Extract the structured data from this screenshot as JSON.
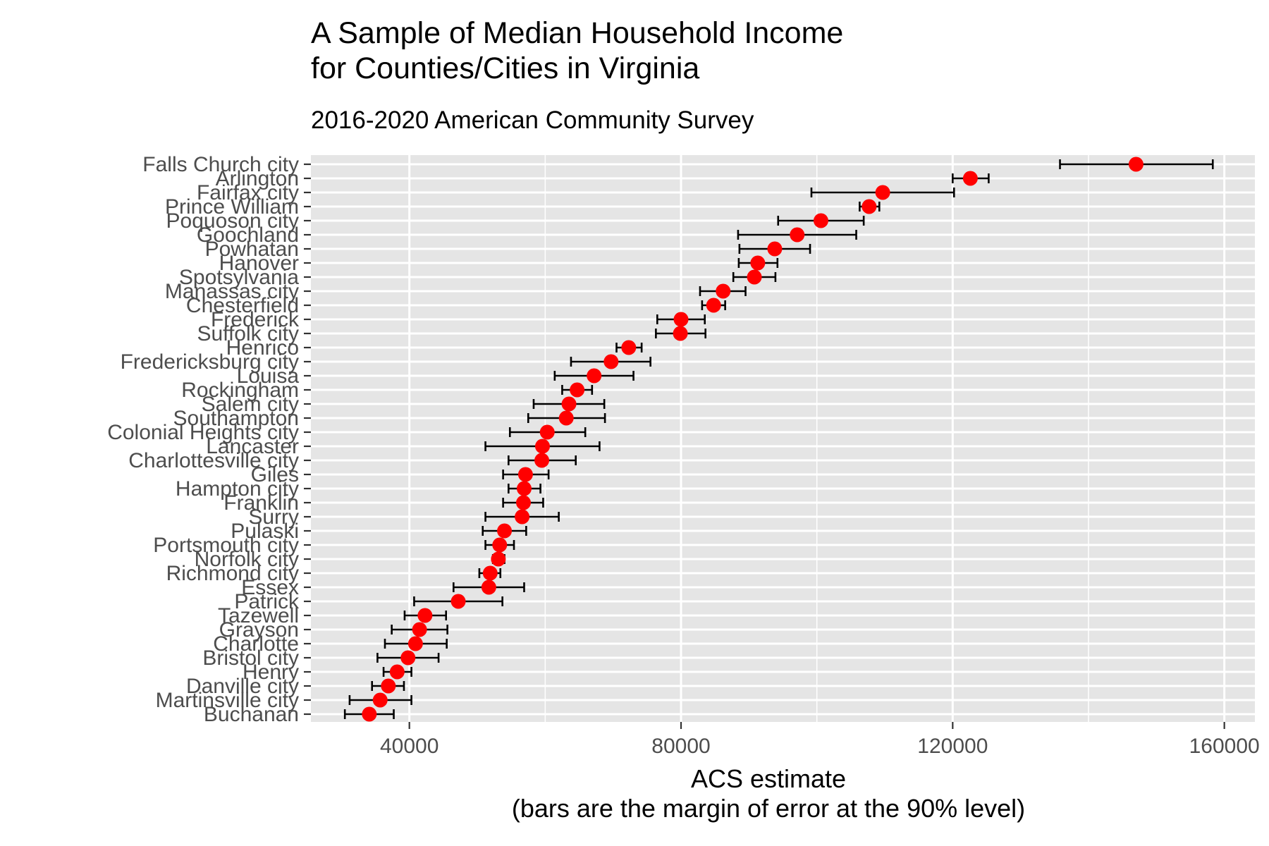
{
  "chart_data": {
    "type": "scatter",
    "title": [
      "A Sample of Median Household Income",
      "for Counties/Cities in Virginia"
    ],
    "subtitle": "2016-2020 American Community Survey",
    "xlabel": [
      "ACS estimate",
      "(bars are the margin of error at the 90% level)"
    ],
    "ylabel": "",
    "xlim": [
      25500,
      164500
    ],
    "xticks": [
      40000,
      80000,
      120000,
      160000
    ],
    "xtick_labels": [
      "40000",
      "80000",
      "120000",
      "160000"
    ],
    "grid": true,
    "point_color": "#ff0000",
    "errorbar_color": "#000000",
    "panel_color": "#e5e5e5",
    "series": [
      {
        "points": [
          {
            "name": "Falls Church city",
            "value": 147000,
            "low": 135800,
            "high": 158300
          },
          {
            "name": "Arlington",
            "value": 122600,
            "low": 120000,
            "high": 125300
          },
          {
            "name": "Fairfax city",
            "value": 109700,
            "low": 99200,
            "high": 120200
          },
          {
            "name": "Prince William",
            "value": 107700,
            "low": 106300,
            "high": 109200
          },
          {
            "name": "Poquoson city",
            "value": 100600,
            "low": 94300,
            "high": 106900
          },
          {
            "name": "Goochland",
            "value": 97100,
            "low": 88400,
            "high": 105800
          },
          {
            "name": "Powhatan",
            "value": 93800,
            "low": 88600,
            "high": 99000
          },
          {
            "name": "Hanover",
            "value": 91300,
            "low": 88500,
            "high": 94200
          },
          {
            "name": "Spotsylvania",
            "value": 90800,
            "low": 87700,
            "high": 93900
          },
          {
            "name": "Manassas city",
            "value": 86200,
            "low": 82800,
            "high": 89500
          },
          {
            "name": "Chesterfield",
            "value": 84800,
            "low": 83100,
            "high": 86500
          },
          {
            "name": "Frederick",
            "value": 80000,
            "low": 76500,
            "high": 83500
          },
          {
            "name": "Suffolk city",
            "value": 79900,
            "low": 76300,
            "high": 83600
          },
          {
            "name": "Henrico",
            "value": 72300,
            "low": 70500,
            "high": 74200
          },
          {
            "name": "Fredericksburg city",
            "value": 69700,
            "low": 63800,
            "high": 75500
          },
          {
            "name": "Louisa",
            "value": 67200,
            "low": 61400,
            "high": 73000
          },
          {
            "name": "Rockingham",
            "value": 64700,
            "low": 62500,
            "high": 66900
          },
          {
            "name": "Salem city",
            "value": 63500,
            "low": 58300,
            "high": 68700
          },
          {
            "name": "Southampton",
            "value": 63100,
            "low": 57500,
            "high": 68800
          },
          {
            "name": "Colonial Heights city",
            "value": 60300,
            "low": 54800,
            "high": 65900
          },
          {
            "name": "Lancaster",
            "value": 59600,
            "low": 51200,
            "high": 68000
          },
          {
            "name": "Charlottesville city",
            "value": 59500,
            "low": 54600,
            "high": 64500
          },
          {
            "name": "Giles",
            "value": 57100,
            "low": 53800,
            "high": 60500
          },
          {
            "name": "Hampton city",
            "value": 56900,
            "low": 54600,
            "high": 59300
          },
          {
            "name": "Franklin",
            "value": 56800,
            "low": 53800,
            "high": 59700
          },
          {
            "name": "Surry",
            "value": 56600,
            "low": 51200,
            "high": 62000
          },
          {
            "name": "Pulaski",
            "value": 54000,
            "low": 50800,
            "high": 57200
          },
          {
            "name": "Portsmouth city",
            "value": 53300,
            "low": 51200,
            "high": 55400
          },
          {
            "name": "Norfolk city",
            "value": 53100,
            "low": 52300,
            "high": 54000
          },
          {
            "name": "Richmond city",
            "value": 51900,
            "low": 50300,
            "high": 53400
          },
          {
            "name": "Essex",
            "value": 51700,
            "low": 46500,
            "high": 56900
          },
          {
            "name": "Patrick",
            "value": 47200,
            "low": 40700,
            "high": 53700
          },
          {
            "name": "Tazewell",
            "value": 42300,
            "low": 39300,
            "high": 45400
          },
          {
            "name": "Grayson",
            "value": 41500,
            "low": 37400,
            "high": 45600
          },
          {
            "name": "Charlotte",
            "value": 40900,
            "low": 36400,
            "high": 45500
          },
          {
            "name": "Bristol city",
            "value": 39800,
            "low": 35300,
            "high": 44300
          },
          {
            "name": "Henry",
            "value": 38200,
            "low": 36200,
            "high": 40300
          },
          {
            "name": "Danville city",
            "value": 36900,
            "low": 34500,
            "high": 39200
          },
          {
            "name": "Martinsville city",
            "value": 35700,
            "low": 31200,
            "high": 40300
          },
          {
            "name": "Buchanan",
            "value": 34100,
            "low": 30500,
            "high": 37700
          }
        ]
      }
    ]
  }
}
